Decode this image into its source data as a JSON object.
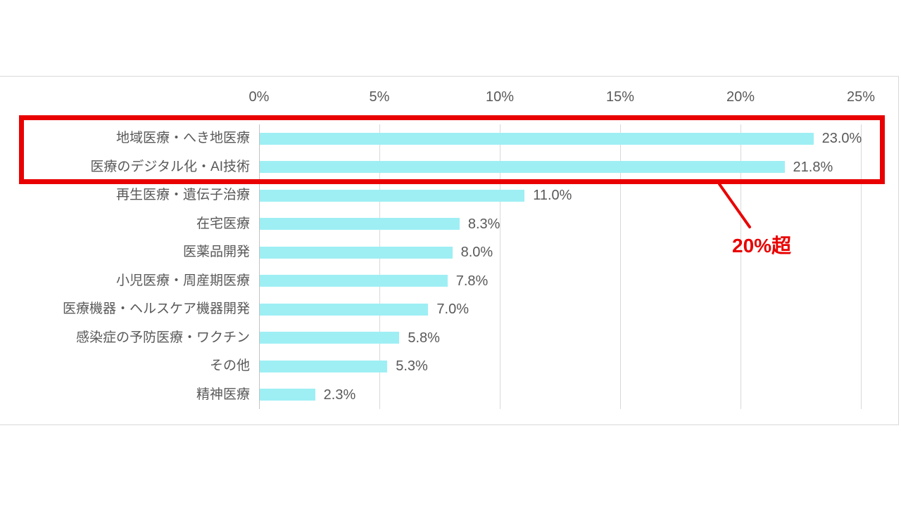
{
  "chart_data": {
    "type": "bar",
    "orientation": "horizontal",
    "title": "",
    "categories": [
      "地域医療・へき地医療",
      "医療のデジタル化・AI技術",
      "再生医療・遺伝子治療",
      "在宅医療",
      "医薬品開発",
      "小児医療・周産期医療",
      "医療機器・ヘルスケア機器開発",
      "感染症の予防医療・ワクチン",
      "その他",
      "精神医療"
    ],
    "values": [
      23.0,
      21.8,
      11.0,
      8.3,
      8.0,
      7.8,
      7.0,
      5.8,
      5.3,
      2.3
    ],
    "value_labels": [
      "23.0%",
      "21.8%",
      "11.0%",
      "8.3%",
      "8.0%",
      "7.8%",
      "7.0%",
      "5.8%",
      "5.3%",
      "2.3%"
    ],
    "x_ticks": [
      "0%",
      "5%",
      "10%",
      "15%",
      "20%",
      "25%"
    ],
    "xlim": [
      0,
      25
    ],
    "xlabel": "",
    "ylabel": "",
    "legend": "none",
    "grid": "vertical",
    "bar_color": "#9eeff4",
    "text_color": "#595959",
    "gridline_color": "#d9d9d9"
  },
  "annotation": {
    "label": "20%超",
    "color": "#e90000",
    "highlighted_categories": [
      "地域医療・へき地医療",
      "医療のデジタル化・AI技術"
    ]
  }
}
